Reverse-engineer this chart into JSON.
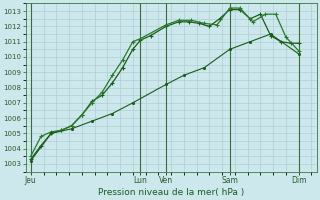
{
  "title": "Pression niveau de la mer( hPa )",
  "bg_color": "#cce8ec",
  "grid_color_major": "#b0cdd4",
  "grid_color_minor": "#c4dde3",
  "line_color1": "#1a5c1a",
  "line_color2": "#2a7a2a",
  "line_color3": "#1a5c1a",
  "ylim": [
    1002.5,
    1013.5
  ],
  "yticks": [
    1003,
    1004,
    1005,
    1006,
    1007,
    1008,
    1009,
    1010,
    1011,
    1012,
    1013
  ],
  "xlim": [
    -0.2,
    11.2
  ],
  "xtick_labels": [
    "Jeu",
    "Lun",
    "Ven",
    "Sam",
    "Dim"
  ],
  "xtick_positions": [
    0.0,
    4.3,
    5.3,
    7.8,
    10.5
  ],
  "vline_positions": [
    0.0,
    4.3,
    5.3,
    7.8,
    10.5
  ],
  "series1_x": [
    0.0,
    0.4,
    0.8,
    1.2,
    1.6,
    2.0,
    2.4,
    2.8,
    3.2,
    3.6,
    4.0,
    4.3,
    4.7,
    5.3,
    5.8,
    6.2,
    6.6,
    7.0,
    7.4,
    7.8,
    8.2,
    8.6,
    9.0,
    9.4,
    9.8,
    10.2,
    10.5
  ],
  "series1_y": [
    1003.3,
    1004.2,
    1005.0,
    1005.2,
    1005.5,
    1006.2,
    1007.1,
    1007.5,
    1008.3,
    1009.3,
    1010.5,
    1011.1,
    1011.4,
    1012.0,
    1012.3,
    1012.3,
    1012.2,
    1012.0,
    1012.5,
    1013.1,
    1013.1,
    1012.5,
    1012.8,
    1011.4,
    1011.0,
    1010.9,
    1010.9
  ],
  "series2_x": [
    0.0,
    0.4,
    0.8,
    1.2,
    1.6,
    2.0,
    2.4,
    2.8,
    3.2,
    3.6,
    4.0,
    4.3,
    5.3,
    5.8,
    6.3,
    6.8,
    7.3,
    7.8,
    8.2,
    8.7,
    9.2,
    9.6,
    10.0,
    10.5
  ],
  "series2_y": [
    1003.5,
    1004.8,
    1005.1,
    1005.2,
    1005.5,
    1006.2,
    1007.0,
    1007.7,
    1008.8,
    1009.8,
    1011.0,
    1011.2,
    1012.1,
    1012.4,
    1012.4,
    1012.2,
    1012.1,
    1013.2,
    1013.2,
    1012.3,
    1012.8,
    1012.8,
    1011.3,
    1010.4
  ],
  "series3_x": [
    0.0,
    0.8,
    1.6,
    2.4,
    3.2,
    4.0,
    5.3,
    6.0,
    6.8,
    7.8,
    8.6,
    9.4,
    10.5
  ],
  "series3_y": [
    1003.2,
    1005.0,
    1005.3,
    1005.8,
    1006.3,
    1007.0,
    1008.2,
    1008.8,
    1009.3,
    1010.5,
    1011.0,
    1011.5,
    1010.2
  ]
}
